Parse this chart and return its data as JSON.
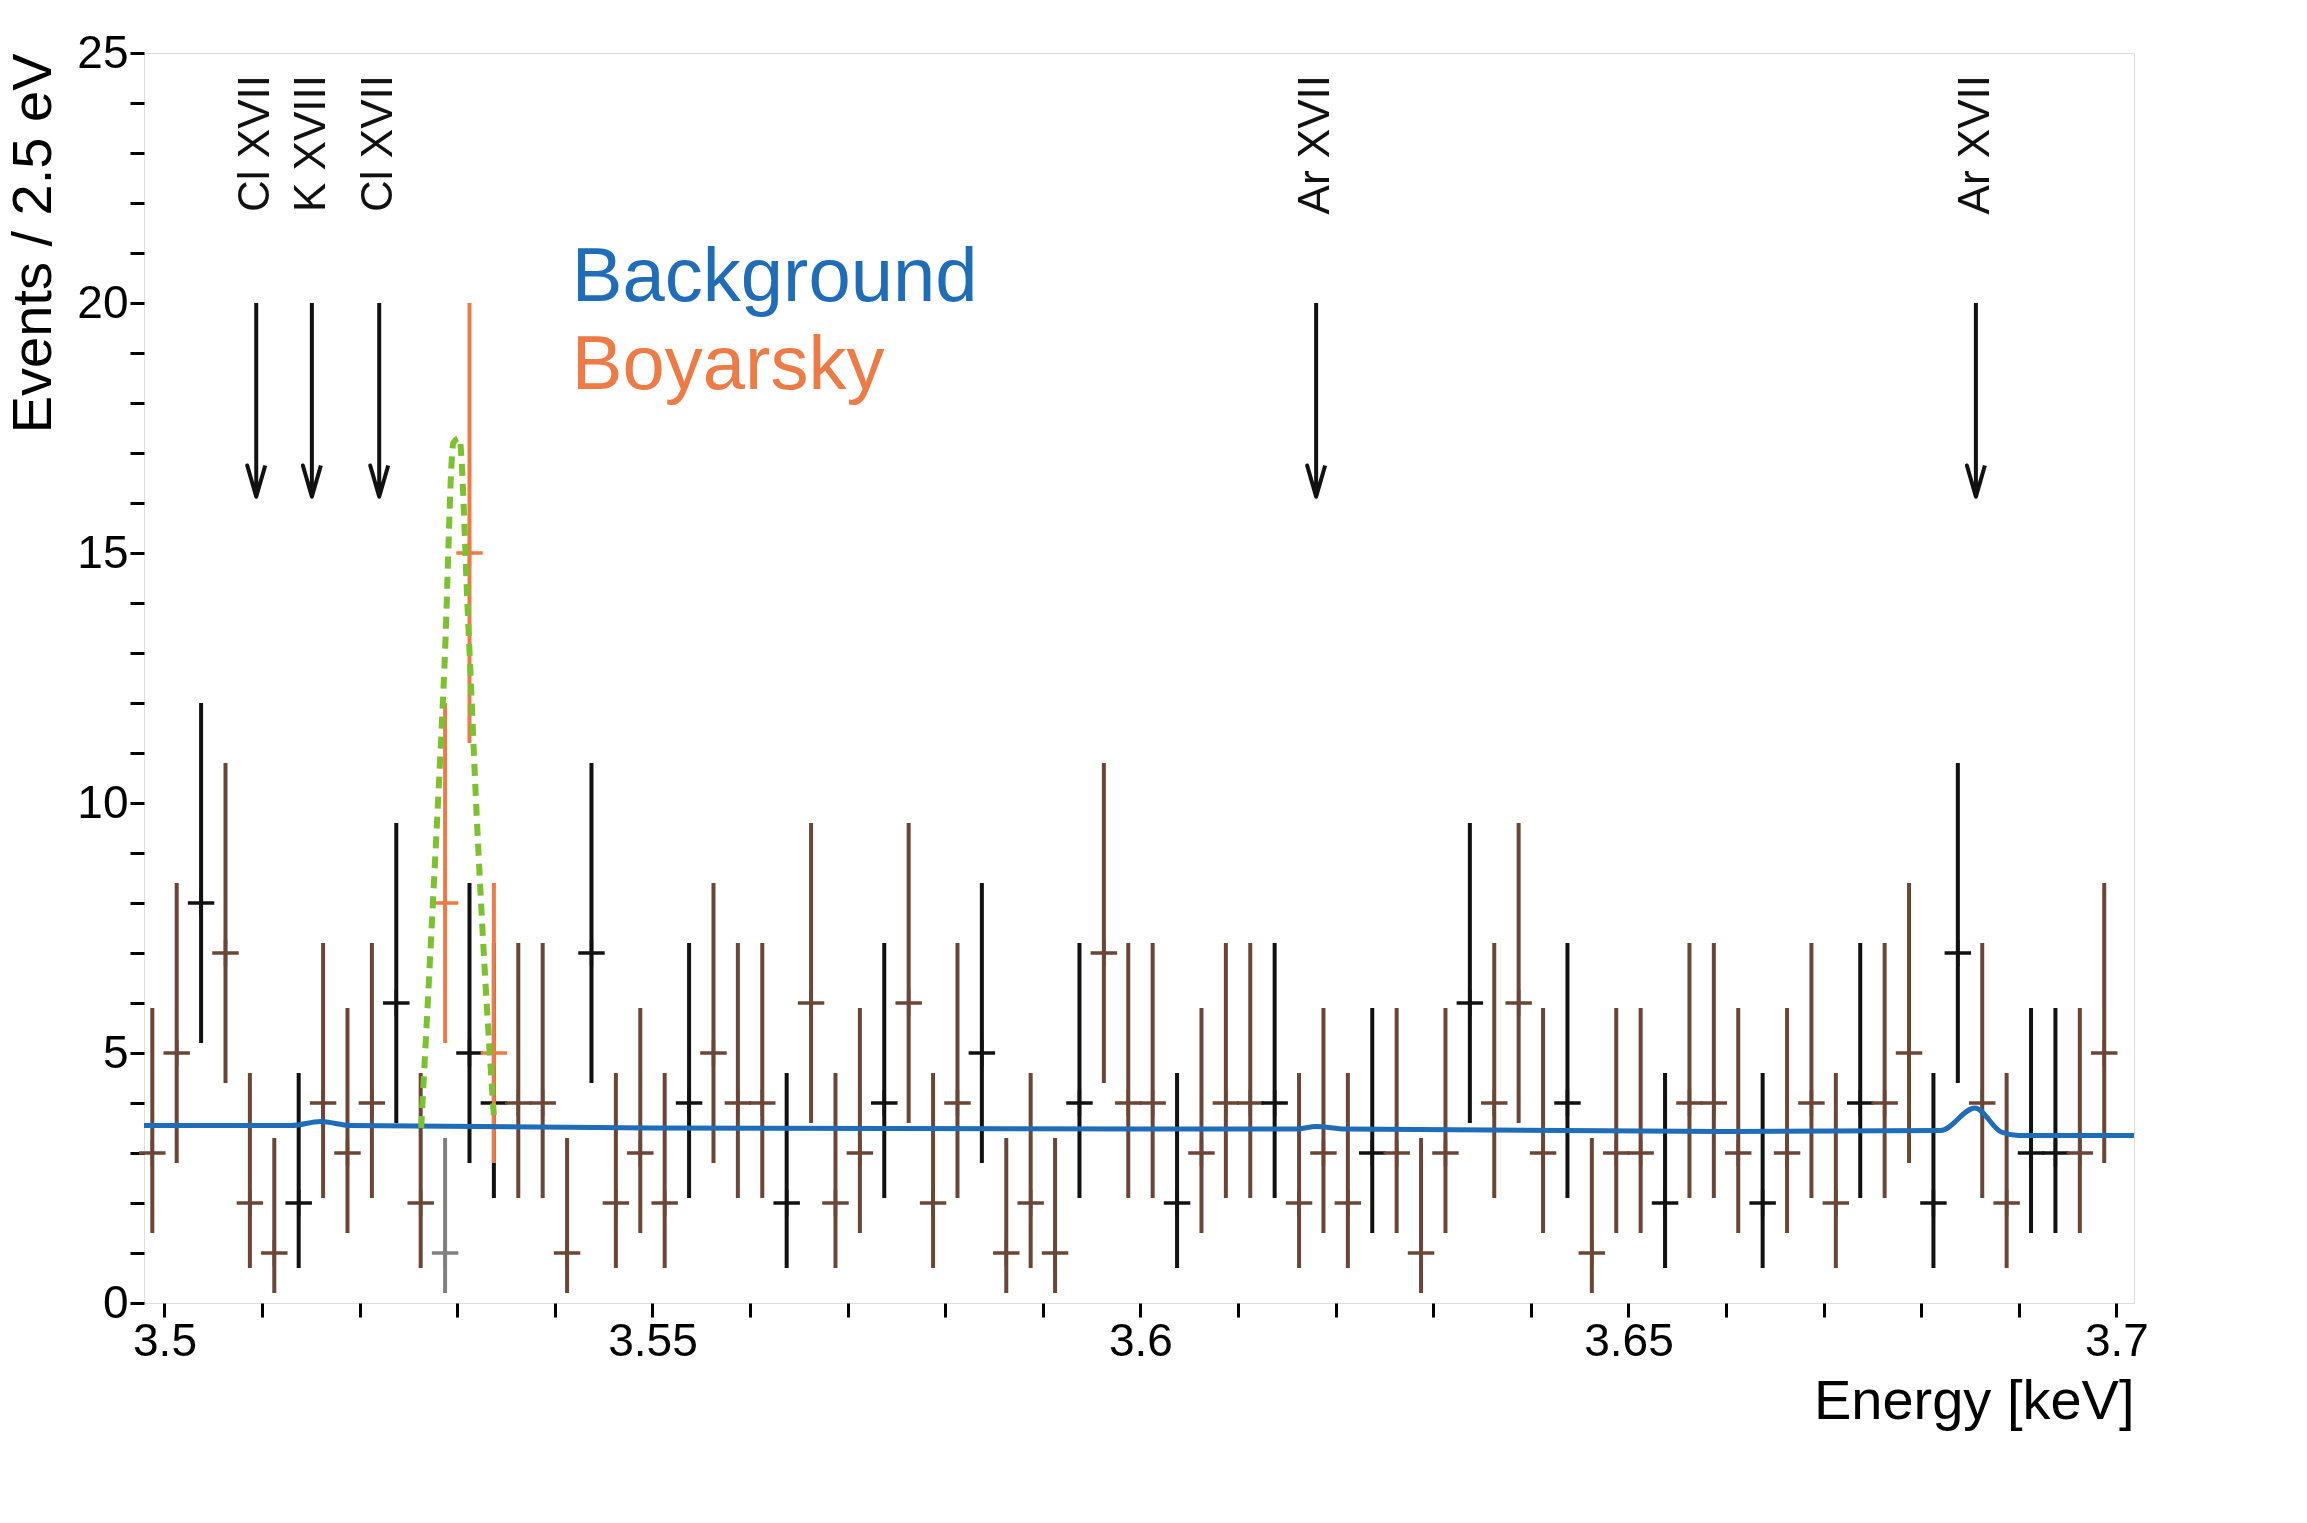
{
  "chart_data": {
    "type": "scatter",
    "xlabel": "Energy [keV]",
    "ylabel": "Events / 2.5 eV",
    "xlim": [
      3.4979,
      3.7018
    ],
    "ylim": [
      0,
      25
    ],
    "xticks": [
      3.5,
      {
        "value": 3.51,
        "label": null
      },
      {
        "value": 3.52,
        "label": null
      },
      {
        "value": 3.53,
        "label": null
      },
      {
        "value": 3.54,
        "label": null
      },
      3.55,
      {
        "value": 3.56,
        "label": null
      },
      {
        "value": 3.57,
        "label": null
      },
      {
        "value": 3.58,
        "label": null
      },
      {
        "value": 3.59,
        "label": null
      },
      3.6,
      {
        "value": 3.61,
        "label": null
      },
      {
        "value": 3.62,
        "label": null
      },
      {
        "value": 3.63,
        "label": null
      },
      {
        "value": 3.64,
        "label": null
      },
      3.65,
      {
        "value": 3.66,
        "label": null
      },
      {
        "value": 3.67,
        "label": null
      },
      {
        "value": 3.68,
        "label": null
      },
      {
        "value": 3.69,
        "label": null
      },
      3.7
    ],
    "yticks": [
      0,
      {
        "value": 1,
        "label": null
      },
      {
        "value": 2,
        "label": null
      },
      {
        "value": 3,
        "label": null
      },
      {
        "value": 4,
        "label": null
      },
      5,
      {
        "value": 6,
        "label": null
      },
      {
        "value": 7,
        "label": null
      },
      {
        "value": 8,
        "label": null
      },
      {
        "value": 9,
        "label": null
      },
      10,
      {
        "value": 11,
        "label": null
      },
      {
        "value": 12,
        "label": null
      },
      {
        "value": 13,
        "label": null
      },
      {
        "value": 14,
        "label": null
      },
      15,
      {
        "value": 16,
        "label": null
      },
      {
        "value": 17,
        "label": null
      },
      {
        "value": 18,
        "label": null
      },
      {
        "value": 19,
        "label": null
      },
      20,
      {
        "value": 21,
        "label": null
      },
      {
        "value": 22,
        "label": null
      },
      {
        "value": 23,
        "label": null
      },
      {
        "value": 24,
        "label": null
      },
      25
    ],
    "grid": false,
    "legend": "top",
    "series": [
      {
        "type": "scatter",
        "marker": "cross",
        "x": [
          3.49875,
          3.50125,
          3.50375,
          3.50625,
          3.50875,
          3.51125,
          3.51375,
          3.51625,
          3.51875,
          3.52125,
          3.52375,
          3.52625,
          3.52875,
          3.53125,
          3.53375,
          3.53625,
          3.53875,
          3.54125,
          3.54375,
          3.54625,
          3.54875,
          3.55125,
          3.55375,
          3.55625,
          3.55875,
          3.56125,
          3.56375,
          3.56625,
          3.56875,
          3.57125,
          3.57375,
          3.57625,
          3.57875,
          3.58125,
          3.58375,
          3.58625,
          3.58875,
          3.59125,
          3.59375,
          3.59625,
          3.59875,
          3.60125,
          3.60375,
          3.60625,
          3.60875,
          3.61125,
          3.61375,
          3.61625,
          3.61875,
          3.62125,
          3.62375,
          3.62625,
          3.62875,
          3.63125,
          3.63375,
          3.63625,
          3.63875,
          3.64125,
          3.64375,
          3.64625,
          3.64875,
          3.65125,
          3.65375,
          3.65625,
          3.65875,
          3.66125,
          3.66375,
          3.66625,
          3.66875,
          3.67125,
          3.67375,
          3.67625,
          3.67875,
          3.68125,
          3.68375,
          3.68625,
          3.68875,
          3.69125,
          3.69375,
          3.69625,
          3.69875
        ],
        "values": [
          3,
          5,
          8,
          7,
          2,
          1,
          2,
          4,
          3,
          4,
          6,
          2,
          1,
          5,
          4,
          4,
          4,
          1,
          7,
          2,
          3,
          2,
          4,
          5,
          4,
          4,
          2,
          6,
          2,
          3,
          4,
          6,
          2,
          4,
          5,
          1,
          2,
          1,
          4,
          7,
          4,
          4,
          2,
          3,
          4,
          4,
          4,
          2,
          3,
          2,
          3,
          3,
          1,
          3,
          6,
          4,
          6,
          3,
          4,
          1,
          3,
          3,
          2,
          4,
          4,
          3,
          2,
          3,
          4,
          2,
          4,
          4,
          5,
          2,
          7,
          4,
          2,
          3,
          3,
          3,
          5
        ],
        "errors": [
          [
            1.4,
            5.9
          ],
          [
            2.8,
            8.4
          ],
          [
            5.2,
            12.0
          ],
          [
            4.4,
            10.8
          ],
          [
            0.7,
            4.6
          ],
          [
            0.2,
            3.3
          ],
          [
            0.7,
            4.6
          ],
          [
            2.1,
            7.2
          ],
          [
            1.4,
            5.9
          ],
          [
            2.1,
            7.2
          ],
          [
            3.6,
            9.6
          ],
          [
            0.7,
            4.6
          ],
          [
            0.2,
            3.3
          ],
          [
            2.8,
            8.4
          ],
          [
            2.1,
            7.2
          ],
          [
            2.1,
            7.2
          ],
          [
            2.1,
            7.2
          ],
          [
            0.2,
            3.3
          ],
          [
            4.4,
            10.8
          ],
          [
            0.7,
            4.6
          ],
          [
            1.4,
            5.9
          ],
          [
            0.7,
            4.6
          ],
          [
            2.1,
            7.2
          ],
          [
            2.8,
            8.4
          ],
          [
            2.1,
            7.2
          ],
          [
            2.1,
            7.2
          ],
          [
            0.7,
            4.6
          ],
          [
            3.6,
            9.6
          ],
          [
            0.7,
            4.6
          ],
          [
            1.4,
            5.9
          ],
          [
            2.1,
            7.2
          ],
          [
            3.6,
            9.6
          ],
          [
            0.7,
            4.6
          ],
          [
            2.1,
            7.2
          ],
          [
            2.8,
            8.4
          ],
          [
            0.2,
            3.3
          ],
          [
            0.7,
            4.6
          ],
          [
            0.2,
            3.3
          ],
          [
            2.1,
            7.2
          ],
          [
            4.4,
            10.8
          ],
          [
            2.1,
            7.2
          ],
          [
            2.1,
            7.2
          ],
          [
            0.7,
            4.6
          ],
          [
            1.4,
            5.9
          ],
          [
            2.1,
            7.2
          ],
          [
            2.1,
            7.2
          ],
          [
            2.1,
            7.2
          ],
          [
            0.7,
            4.6
          ],
          [
            1.4,
            5.9
          ],
          [
            0.7,
            4.6
          ],
          [
            1.4,
            5.9
          ],
          [
            1.4,
            5.9
          ],
          [
            0.2,
            3.3
          ],
          [
            1.4,
            5.9
          ],
          [
            3.6,
            9.6
          ],
          [
            2.1,
            7.2
          ],
          [
            3.6,
            9.6
          ],
          [
            1.4,
            5.9
          ],
          [
            2.1,
            7.2
          ],
          [
            0.2,
            3.3
          ],
          [
            1.4,
            5.9
          ],
          [
            1.4,
            5.9
          ],
          [
            0.7,
            4.6
          ],
          [
            2.1,
            7.2
          ],
          [
            2.1,
            7.2
          ],
          [
            1.4,
            5.9
          ],
          [
            0.7,
            4.6
          ],
          [
            1.4,
            5.9
          ],
          [
            2.1,
            7.2
          ],
          [
            0.7,
            4.6
          ],
          [
            2.1,
            7.2
          ],
          [
            2.1,
            7.2
          ],
          [
            2.8,
            8.4
          ],
          [
            0.7,
            4.6
          ],
          [
            4.4,
            10.8
          ],
          [
            2.1,
            7.2
          ],
          [
            0.7,
            4.6
          ],
          [
            1.4,
            5.9
          ],
          [
            1.4,
            5.9
          ],
          [
            1.4,
            5.9
          ],
          [
            2.8,
            8.4
          ]
        ],
        "colors": [
          "#6b4636",
          "#6b4636",
          "#111111",
          "#6b4636",
          "#6b4636",
          "#6b4636",
          "#111111",
          "#6b4636",
          "#6b4636",
          "#6b4636",
          "#111111",
          "#6b4636",
          "#808080",
          "#111111",
          "#111111",
          "#6b4636",
          "#6b4636",
          "#6b4636",
          "#111111",
          "#6b4636",
          "#6b4636",
          "#6b4636",
          "#111111",
          "#6b4636",
          "#6b4636",
          "#6b4636",
          "#111111",
          "#6b4636",
          "#6b4636",
          "#6b4636",
          "#111111",
          "#6b4636",
          "#6b4636",
          "#6b4636",
          "#111111",
          "#6b4636",
          "#6b4636",
          "#6b4636",
          "#111111",
          "#6b4636",
          "#6b4636",
          "#6b4636",
          "#111111",
          "#6b4636",
          "#6b4636",
          "#6b4636",
          "#111111",
          "#6b4636",
          "#6b4636",
          "#6b4636",
          "#111111",
          "#6b4636",
          "#6b4636",
          "#6b4636",
          "#111111",
          "#6b4636",
          "#6b4636",
          "#6b4636",
          "#111111",
          "#6b4636",
          "#6b4636",
          "#6b4636",
          "#111111",
          "#6b4636",
          "#6b4636",
          "#6b4636",
          "#111111",
          "#6b4636",
          "#6b4636",
          "#6b4636",
          "#111111",
          "#6b4636",
          "#6b4636",
          "#111111",
          "#111111",
          "#6b4636",
          "#6b4636",
          "#111111",
          "#111111",
          "#6b4636",
          "#6b4636"
        ]
      },
      {
        "name": "Background",
        "type": "line",
        "color": "#1f6cb8",
        "line_style": "solid",
        "x": [
          3.4979,
          3.513,
          3.516,
          3.519,
          3.55,
          3.6,
          3.616,
          3.618,
          3.621,
          3.66,
          3.682,
          3.6855,
          3.6882,
          3.69,
          3.7018
        ],
        "values": [
          3.55,
          3.55,
          3.63,
          3.55,
          3.5,
          3.48,
          3.48,
          3.53,
          3.48,
          3.43,
          3.45,
          3.9,
          3.42,
          3.35,
          3.35
        ]
      },
      {
        "name": "Boyarsky",
        "type": "scatter",
        "marker": "cross",
        "color": "#ee7a45",
        "x": [
          3.52875,
          3.53125,
          3.53375
        ],
        "values": [
          8,
          15,
          5
        ],
        "errors": [
          [
            5.2,
            12.0
          ],
          [
            11.2,
            20.0
          ],
          [
            2.8,
            8.4
          ]
        ]
      },
      {
        "type": "line",
        "color": "#7cc130",
        "line_style": "dashed",
        "x": [
          3.5263,
          3.5275,
          3.5287,
          3.5296,
          3.5302,
          3.5311,
          3.532,
          3.5331,
          3.5338
        ],
        "values": [
          3.5,
          8.0,
          12.8,
          17.2,
          17.3,
          13.7,
          9.7,
          5.7,
          3.6
        ]
      }
    ],
    "ref_lines": [
      {
        "axis": "x",
        "value": 3.5094,
        "label": "Cl XVII"
      },
      {
        "axis": "x",
        "value": 3.5151,
        "label": "K XVIII"
      },
      {
        "axis": "x",
        "value": 3.522,
        "label": "Cl XVII"
      },
      {
        "axis": "x",
        "value": 3.618,
        "label": "Ar XVII"
      },
      {
        "axis": "x",
        "value": 3.6856,
        "label": "Ar XVII"
      }
    ]
  }
}
